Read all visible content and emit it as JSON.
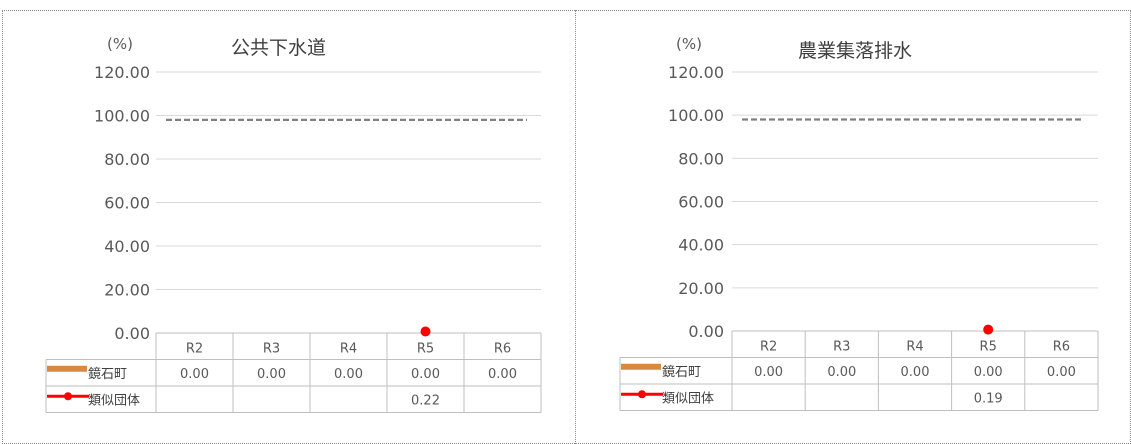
{
  "colors": {
    "bar_series": "#d8883f",
    "line_series": "#ff0000",
    "reference_line": "#808080",
    "gridline": "#d9d9d9"
  },
  "chart_data": [
    {
      "type": "bar",
      "title": "公共下水道",
      "unit_label": "(%)",
      "ylim": [
        0,
        120
      ],
      "yticks": [
        "0.00",
        "20.00",
        "40.00",
        "60.00",
        "80.00",
        "100.00",
        "120.00"
      ],
      "grid": true,
      "categories": [
        "R2",
        "R3",
        "R4",
        "R5",
        "R6"
      ],
      "reference_line": {
        "value": 98,
        "style": "dashed"
      },
      "series": [
        {
          "name": "鏡石町",
          "kind": "bar",
          "values": [
            0.0,
            0.0,
            0.0,
            0.0,
            0.0
          ],
          "labels": [
            "0.00",
            "0.00",
            "0.00",
            "0.00",
            "0.00"
          ]
        },
        {
          "name": "類似団体",
          "kind": "line",
          "values": [
            null,
            null,
            null,
            0.22,
            null
          ],
          "labels": [
            "",
            "",
            "",
            "0.22",
            ""
          ]
        }
      ]
    },
    {
      "type": "bar",
      "title": "農業集落排水",
      "unit_label": "(%)",
      "ylim": [
        0,
        120
      ],
      "yticks": [
        "0.00",
        "20.00",
        "40.00",
        "60.00",
        "80.00",
        "100.00",
        "120.00"
      ],
      "grid": true,
      "categories": [
        "R2",
        "R3",
        "R4",
        "R5",
        "R6"
      ],
      "reference_line": {
        "value": 98,
        "style": "dashed"
      },
      "series": [
        {
          "name": "鏡石町",
          "kind": "bar",
          "values": [
            0.0,
            0.0,
            0.0,
            0.0,
            0.0
          ],
          "labels": [
            "0.00",
            "0.00",
            "0.00",
            "0.00",
            "0.00"
          ]
        },
        {
          "name": "類似団体",
          "kind": "line",
          "values": [
            null,
            null,
            null,
            0.19,
            null
          ],
          "labels": [
            "",
            "",
            "",
            "0.19",
            ""
          ]
        }
      ]
    }
  ]
}
